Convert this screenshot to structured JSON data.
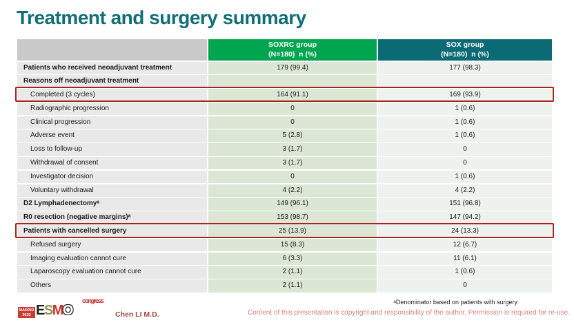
{
  "title": "Treatment and surgery summary",
  "table": {
    "columns": [
      {
        "name": "SOXRC group",
        "sub": "(N=180)  n (%)"
      },
      {
        "name": "SOX group",
        "sub": "(N=180)  n (%)"
      }
    ],
    "rows": [
      {
        "label": "Patients who received neoadjuvant treatment",
        "bold": true,
        "indent": false,
        "highlight": false,
        "soxrc": "179 (99.4)",
        "sox": "177 (98.3)"
      },
      {
        "label": "Reasons off neoadjuvant treatment",
        "bold": true,
        "indent": false,
        "highlight": false,
        "soxrc": "",
        "sox": ""
      },
      {
        "label": "Completed (3 cycles)",
        "bold": false,
        "indent": true,
        "highlight": true,
        "soxrc": "164 (91.1)",
        "sox": "169 (93.9)"
      },
      {
        "label": "Radiographic progression",
        "bold": false,
        "indent": true,
        "highlight": false,
        "soxrc": "0",
        "sox": "1 (0.6)"
      },
      {
        "label": "Clinical progression",
        "bold": false,
        "indent": true,
        "highlight": false,
        "soxrc": "0",
        "sox": "1 (0.6)"
      },
      {
        "label": "Adverse event",
        "bold": false,
        "indent": true,
        "highlight": false,
        "soxrc": "5 (2.8)",
        "sox": "1 (0.6)"
      },
      {
        "label": "Loss to follow-up",
        "bold": false,
        "indent": true,
        "highlight": false,
        "soxrc": "3 (1.7)",
        "sox": "0"
      },
      {
        "label": "Withdrawal of consent",
        "bold": false,
        "indent": true,
        "highlight": false,
        "soxrc": "3 (1.7)",
        "sox": "0"
      },
      {
        "label": "Investigator decision",
        "bold": false,
        "indent": true,
        "highlight": false,
        "soxrc": "0",
        "sox": "1 (0.6)"
      },
      {
        "label": "Voluntary withdrawal",
        "bold": false,
        "indent": true,
        "highlight": false,
        "soxrc": "4 (2.2)",
        "sox": "4 (2.2)"
      },
      {
        "label": "D2 Lymphadenectomyᵃ",
        "bold": true,
        "indent": false,
        "highlight": false,
        "soxrc": "149 (96.1)",
        "sox": "151 (96.8)"
      },
      {
        "label": "R0 resection (negative margins)ᵃ",
        "bold": true,
        "indent": false,
        "highlight": false,
        "soxrc": "153 (98.7)",
        "sox": "147 (94.2)"
      },
      {
        "label": "Patients with cancelled surgery",
        "bold": true,
        "indent": false,
        "highlight": true,
        "soxrc": "25 (13.9)",
        "sox": "24 (13.3)"
      },
      {
        "label": "Refused surgery",
        "bold": false,
        "indent": true,
        "highlight": false,
        "soxrc": "15 (8.3)",
        "sox": "12 (6.7)"
      },
      {
        "label": "Imaging evaluation cannot cure",
        "bold": false,
        "indent": true,
        "highlight": false,
        "soxrc": "6 (3.3)",
        "sox": "11 (6.1)"
      },
      {
        "label": "Laparoscopy evaluation cannot cure",
        "bold": false,
        "indent": true,
        "highlight": false,
        "soxrc": "2 (1.1)",
        "sox": "1 (0.6)"
      },
      {
        "label": "Others",
        "bold": false,
        "indent": true,
        "highlight": false,
        "soxrc": "2 (1.1)",
        "sox": "0"
      }
    ]
  },
  "footer": {
    "logo": {
      "madrid_line1": "MADRID",
      "madrid_line2": "2023",
      "letters": [
        "E",
        "S",
        "M",
        "O"
      ],
      "congress": "congress"
    },
    "author": "Chen LI M.D.",
    "footnote": "ᵃDenominator based on patients with surgery",
    "copyright": "Content of this presentation is copyright and responsibility of the author. Permission is required for re-use."
  },
  "colors": {
    "title": "#116e76",
    "soxrc_header": "#00a54f",
    "sox_header": "#0c6a75",
    "label_cell": "#e9e9e9",
    "soxrc_cell": "#dce6d4",
    "sox_cell": "#edf2ef",
    "highlight_border": "#a8231e",
    "copyright_text": "#d7807d"
  }
}
